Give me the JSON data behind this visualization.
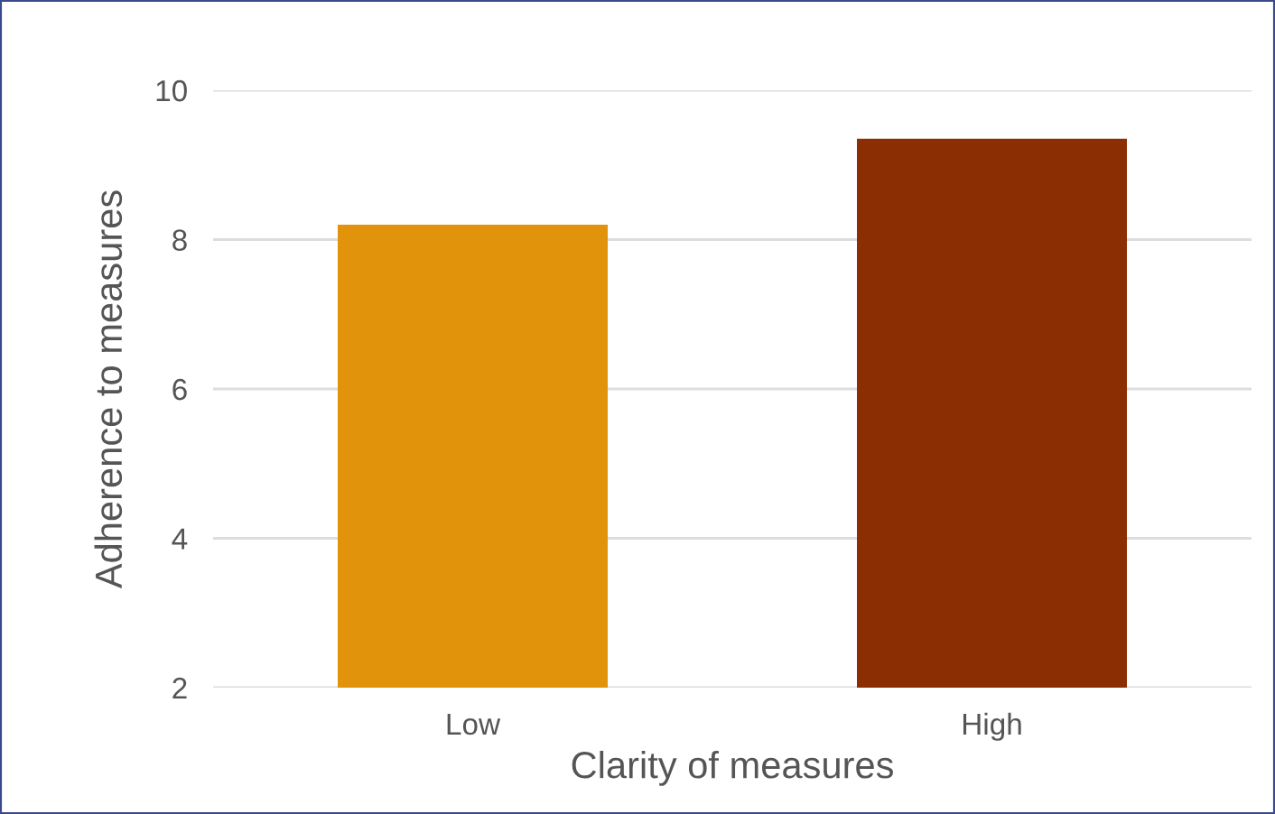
{
  "chart_data": {
    "type": "bar",
    "xlabel": "Clarity of measures",
    "ylabel": "Adherence to measures",
    "categories": [
      "Low",
      "High"
    ],
    "values": [
      8.2,
      9.35
    ],
    "colors": [
      "#e0930b",
      "#8b2e03"
    ],
    "ylim": [
      2,
      10
    ],
    "yticks": [
      2,
      4,
      6,
      8,
      10
    ],
    "grid": "y"
  }
}
